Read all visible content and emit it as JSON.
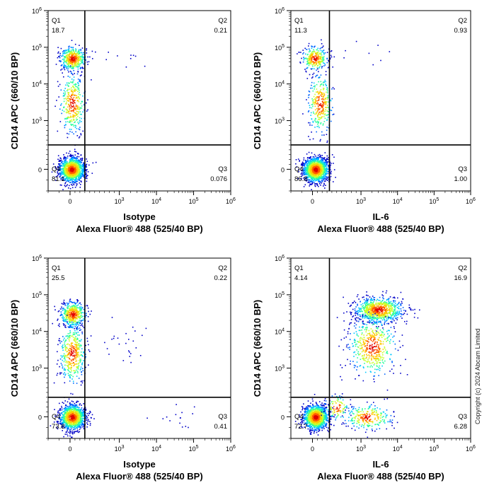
{
  "copyright": "Copyright (c) 2024 Abcam Limited",
  "density_colors": [
    "#0000c8",
    "#0064ff",
    "#00c8ff",
    "#2cff9a",
    "#c8ff2c",
    "#ffc800",
    "#ff5a00",
    "#e00000"
  ],
  "chart_data": [
    {
      "type": "scatter",
      "title": "",
      "xlabel": "Isotype",
      "xlabel2": "Alexa Fluor® 488  (525/40 BP)",
      "ylabel": "CD14 APC (660/10 BP)",
      "x_scale": "log",
      "y_scale": "log",
      "xlim": [
        -1000,
        1000000
      ],
      "ylim": [
        -1000,
        1000000
      ],
      "x_ticks": [
        {
          "value": 0,
          "label": "0"
        },
        {
          "value": 1000,
          "label": "10",
          "exp": "3"
        },
        {
          "value": 10000,
          "label": "10",
          "exp": "4"
        },
        {
          "value": 100000,
          "label": "10",
          "exp": "5"
        },
        {
          "value": 1000000,
          "label": "10",
          "exp": "6"
        }
      ],
      "y_ticks": [
        {
          "value": 0,
          "label": "0"
        },
        {
          "value": 1000,
          "label": "10",
          "exp": "3"
        },
        {
          "value": 10000,
          "label": "10",
          "exp": "4"
        },
        {
          "value": 100000,
          "label": "10",
          "exp": "5"
        },
        {
          "value": 1000000,
          "label": "10",
          "exp": "6"
        }
      ],
      "gate": {
        "x": 300,
        "y": 500
      },
      "quadrants": [
        {
          "name": "Q1",
          "value": "18.7"
        },
        {
          "name": "Q2",
          "value": "0.21"
        },
        {
          "name": "Q3",
          "value": "0.076"
        },
        {
          "name": "Q4",
          "value": "81.1"
        }
      ],
      "populations": [
        {
          "x": 50,
          "y": 50000,
          "count": 450
        },
        {
          "x": 40,
          "y": 3000,
          "count": 350
        },
        {
          "x": 30,
          "y": 0,
          "count": 1200
        },
        {
          "x": 2000,
          "y": 60000,
          "count": 10
        }
      ]
    },
    {
      "type": "scatter",
      "title": "",
      "xlabel": "IL-6",
      "xlabel2": "Alexa Fluor® 488  (525/40 BP)",
      "ylabel": "CD14 APC (660/10 BP)",
      "x_scale": "log",
      "y_scale": "log",
      "xlim": [
        -1000,
        1000000
      ],
      "ylim": [
        -1000,
        1000000
      ],
      "x_ticks": [
        {
          "value": 0,
          "label": "0"
        },
        {
          "value": 1000,
          "label": "10",
          "exp": "3"
        },
        {
          "value": 10000,
          "label": "10",
          "exp": "4"
        },
        {
          "value": 100000,
          "label": "10",
          "exp": "5"
        },
        {
          "value": 1000000,
          "label": "10",
          "exp": "6"
        }
      ],
      "y_ticks": [
        {
          "value": 0,
          "label": "0"
        },
        {
          "value": 1000,
          "label": "10",
          "exp": "3"
        },
        {
          "value": 10000,
          "label": "10",
          "exp": "4"
        },
        {
          "value": 100000,
          "label": "10",
          "exp": "5"
        },
        {
          "value": 1000000,
          "label": "10",
          "exp": "6"
        }
      ],
      "gate": {
        "x": 350,
        "y": 500
      },
      "quadrants": [
        {
          "name": "Q1",
          "value": "11.3"
        },
        {
          "name": "Q2",
          "value": "0.93"
        },
        {
          "name": "Q3",
          "value": "1.00"
        },
        {
          "name": "Q4",
          "value": "86.8"
        }
      ],
      "populations": [
        {
          "x": 40,
          "y": 50000,
          "count": 300
        },
        {
          "x": 150,
          "y": 3000,
          "count": 300
        },
        {
          "x": 60,
          "y": 0,
          "count": 1300
        },
        {
          "x": 1500,
          "y": 60000,
          "count": 8
        }
      ]
    },
    {
      "type": "scatter",
      "title": "",
      "xlabel": "Isotype",
      "xlabel2": "Alexa Fluor® 488  (525/40 BP)",
      "ylabel": "CD14 APC (660/10 BP)",
      "x_scale": "log",
      "y_scale": "log",
      "xlim": [
        -1000,
        1000000
      ],
      "ylim": [
        -1000,
        1000000
      ],
      "x_ticks": [
        {
          "value": 0,
          "label": "0"
        },
        {
          "value": 1000,
          "label": "10",
          "exp": "3"
        },
        {
          "value": 10000,
          "label": "10",
          "exp": "4"
        },
        {
          "value": 100000,
          "label": "10",
          "exp": "5"
        },
        {
          "value": 1000000,
          "label": "10",
          "exp": "6"
        }
      ],
      "y_ticks": [
        {
          "value": 0,
          "label": "0"
        },
        {
          "value": 1000,
          "label": "10",
          "exp": "3"
        },
        {
          "value": 10000,
          "label": "10",
          "exp": "4"
        },
        {
          "value": 100000,
          "label": "10",
          "exp": "5"
        },
        {
          "value": 1000000,
          "label": "10",
          "exp": "6"
        }
      ],
      "gate": {
        "x": 300,
        "y": 400
      },
      "quadrants": [
        {
          "name": "Q1",
          "value": "25.5"
        },
        {
          "name": "Q2",
          "value": "0.22"
        },
        {
          "name": "Q3",
          "value": "0.41"
        },
        {
          "name": "Q4",
          "value": "73.8"
        }
      ],
      "populations": [
        {
          "x": 50,
          "y": 30000,
          "count": 450
        },
        {
          "x": 40,
          "y": 2500,
          "count": 400
        },
        {
          "x": 40,
          "y": 0,
          "count": 1100
        },
        {
          "x": 2000,
          "y": 5000,
          "count": 25
        },
        {
          "x": 30000,
          "y": 0,
          "count": 15
        }
      ]
    },
    {
      "type": "scatter",
      "title": "",
      "xlabel": "IL-6",
      "xlabel2": "Alexa Fluor® 488  (525/40 BP)",
      "ylabel": "CD14 APC (660/10 BP)",
      "x_scale": "log",
      "y_scale": "log",
      "xlim": [
        -1000,
        1000000
      ],
      "ylim": [
        -1000,
        1000000
      ],
      "x_ticks": [
        {
          "value": 0,
          "label": "0"
        },
        {
          "value": 1000,
          "label": "10",
          "exp": "3"
        },
        {
          "value": 10000,
          "label": "10",
          "exp": "4"
        },
        {
          "value": 100000,
          "label": "10",
          "exp": "5"
        },
        {
          "value": 1000000,
          "label": "10",
          "exp": "6"
        }
      ],
      "y_ticks": [
        {
          "value": 0,
          "label": "0"
        },
        {
          "value": 1000,
          "label": "10",
          "exp": "3"
        },
        {
          "value": 10000,
          "label": "10",
          "exp": "4"
        },
        {
          "value": 100000,
          "label": "10",
          "exp": "5"
        },
        {
          "value": 1000000,
          "label": "10",
          "exp": "6"
        }
      ],
      "gate": {
        "x": 350,
        "y": 400
      },
      "quadrants": [
        {
          "name": "Q1",
          "value": "4.14"
        },
        {
          "name": "Q2",
          "value": "16.9"
        },
        {
          "name": "Q3",
          "value": "6.28"
        },
        {
          "name": "Q4",
          "value": "72.7"
        }
      ],
      "populations": [
        {
          "x": 3000,
          "y": 40000,
          "count": 800
        },
        {
          "x": 2000,
          "y": 4000,
          "count": 500
        },
        {
          "x": 60,
          "y": 0,
          "count": 1200
        },
        {
          "x": 1500,
          "y": 0,
          "count": 250
        },
        {
          "x": 500,
          "y": 200,
          "count": 100
        }
      ]
    }
  ]
}
